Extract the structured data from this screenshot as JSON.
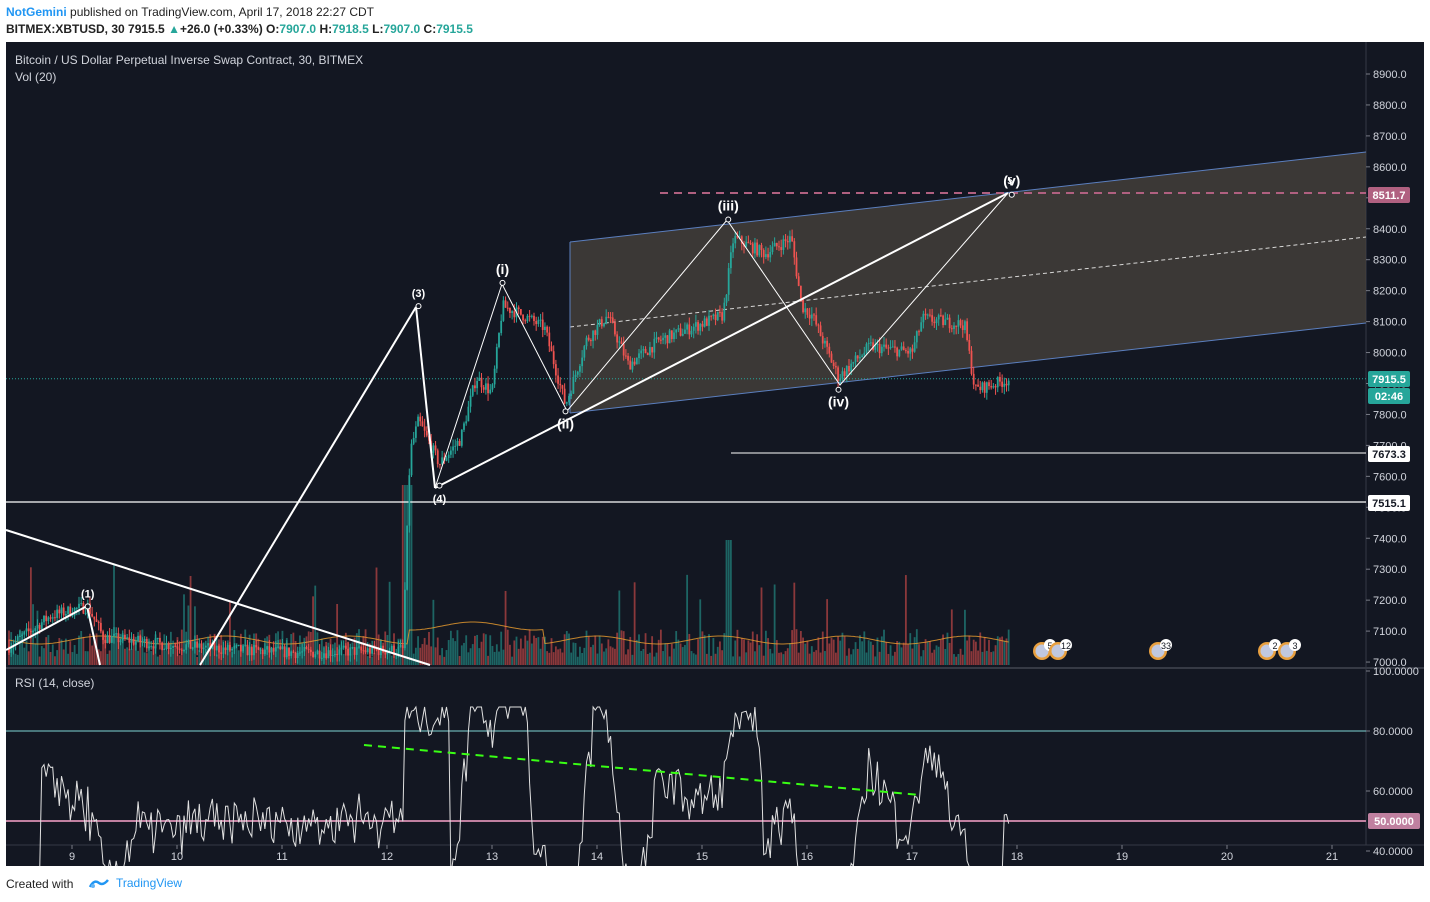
{
  "header": {
    "author": "NotGemini",
    "published": "published on TradingView.com, April 17, 2018 22:27 CDT",
    "symbol": "BITMEX:XBTUSD, 30",
    "last": "7915.5",
    "change": "+26.0 (+0.33%)",
    "o_label": "O:",
    "o": "7907.0",
    "h_label": "H:",
    "h": "7918.5",
    "l_label": "L:",
    "l": "7907.0",
    "c_label": "C:",
    "c": "7915.5"
  },
  "legend": {
    "title": "Bitcoin / US Dollar Perpetual Inverse Swap Contract, 30, BITMEX",
    "volume": "Vol (20)",
    "rsi": "RSI (14, close)"
  },
  "footer": {
    "created": "Created with",
    "brand": "TradingView"
  },
  "colors": {
    "background": "#131722",
    "up": "#26a69a",
    "down": "#ef5350",
    "channel_fill": "#4a443d",
    "channel_line": "#5b7fbf",
    "target_line": "#b06080",
    "rsi_line": "#e0e0e0",
    "rsi_mid": "#c080a0",
    "rsi_trend": "#39ff14"
  },
  "chart_data": [
    {
      "type": "candlestick",
      "x_ticks": [
        "9",
        "10",
        "11",
        "12",
        "13",
        "14",
        "15",
        "16",
        "17",
        "18",
        "19",
        "20",
        "21"
      ],
      "y_ticks": [
        "8900.0",
        "8800.0",
        "8700.0",
        "8600.0",
        "8500.0",
        "8400.0",
        "8300.0",
        "8200.0",
        "8100.0",
        "8000.0",
        "7900.0",
        "7800.0",
        "7700.0",
        "7600.0",
        "7500.0",
        "7400.0",
        "7300.0",
        "7200.0",
        "7100.0",
        "7000.0"
      ],
      "ylim": [
        7000,
        8940
      ],
      "price_labels": {
        "last": "7915.5",
        "countdown": "02:46",
        "target": "8511.7",
        "level_1": "7673.3",
        "level_2": "7515.1"
      },
      "wave_labels": [
        "(1)",
        "(3)",
        "(4)",
        "(i)",
        "(ii)",
        "(iii)",
        "(iv)",
        "(v)",
        "5"
      ],
      "wave_points": [
        {
          "label": "(1)",
          "day": 9.15,
          "price": 7180
        },
        {
          "label": "(3)",
          "day": 12.3,
          "price": 8150
        },
        {
          "label": "(4)",
          "day": 12.5,
          "price": 7570
        },
        {
          "label": "(i)",
          "day": 13.1,
          "price": 8225
        },
        {
          "label": "(ii)",
          "day": 13.7,
          "price": 7810
        },
        {
          "label": "(iii)",
          "day": 15.25,
          "price": 8430
        },
        {
          "label": "(iv)",
          "day": 16.3,
          "price": 7880
        },
        {
          "label": "(v)",
          "day": 17.95,
          "price": 8510
        }
      ],
      "event_badges": [
        "5",
        "12",
        "33",
        "2",
        "3"
      ]
    },
    {
      "type": "line",
      "title": "RSI (14, close)",
      "y_ticks": [
        "100.0000",
        "80.0000",
        "60.0000",
        "50.0000",
        "40.0000"
      ],
      "ylim": [
        30,
        100
      ],
      "levels": [
        80,
        50
      ]
    }
  ]
}
